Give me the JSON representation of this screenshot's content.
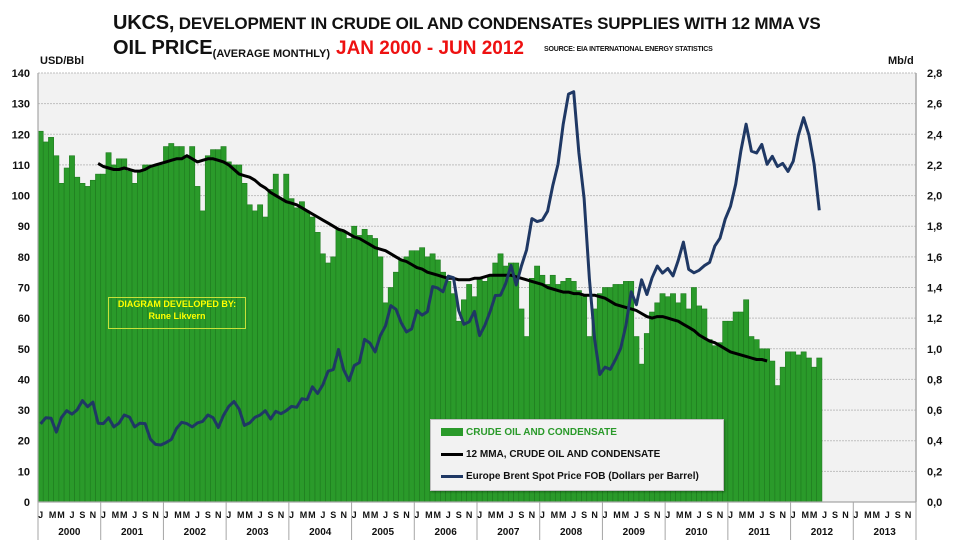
{
  "title": {
    "line1_prefix": "UKCS,",
    "line1_rest": " DEVELOPMENT IN CRUDE OIL AND CONDENSATEs SUPPLIES WITH 12 MMA VS",
    "line2_main": "OIL PRICE",
    "line2_sub": "(AVERAGE MONTHLY)",
    "line2_period": "JAN 2000 - JUN 2012",
    "source": "SOURCE: EIA INTERNATIONAL ENERGY STATISTICS"
  },
  "credit": {
    "line1": "DIAGRAM DEVELOPED BY:",
    "line2": "Rune Likvern"
  },
  "colors": {
    "bar": "#2a9a2a",
    "bar_edge": "#1f7a1f",
    "mma": "#000000",
    "price": "#1f3864",
    "period_red": "#ee1111",
    "credit_text": "#ffff00",
    "plot_bg": "#f2f2f2",
    "grid": "#bfbfbf"
  },
  "chart_data": {
    "type": "bar",
    "title": "UKCS, DEVELOPMENT IN CRUDE OIL AND CONDENSATEs SUPPLIES WITH 12 MMA VS OIL PRICE (AVERAGE MONTHLY) JAN 2000 - JUN 2012",
    "ylabel_left": "USD/Bbl",
    "ylabel_right": "Mb/d",
    "ylim_left": [
      0,
      140
    ],
    "ylim_right": [
      0,
      2.8
    ],
    "yticks_left": [
      "0",
      "10",
      "20",
      "30",
      "40",
      "50",
      "60",
      "70",
      "80",
      "90",
      "100",
      "110",
      "120",
      "130",
      "140"
    ],
    "yticks_right": [
      "0,0",
      "0,2",
      "0,4",
      "0,6",
      "0,8",
      "1,0",
      "1,2",
      "1,4",
      "1,6",
      "1,8",
      "2,0",
      "2,2",
      "2,4",
      "2,6",
      "2,8"
    ],
    "x_years": [
      "2000",
      "2001",
      "2002",
      "2003",
      "2004",
      "2005",
      "2006",
      "2007",
      "2008",
      "2009",
      "2010",
      "2011",
      "2012",
      "2013"
    ],
    "x_month_ticks": [
      "J",
      "M",
      "M",
      "J",
      "S",
      "N"
    ],
    "x_start": "2000-01",
    "x_span_months": 168,
    "grid": true,
    "legend_position": "bottom-center",
    "legend": [
      {
        "label": "CRUDE OIL AND CONDENSATE",
        "kind": "bar"
      },
      {
        "label": "12 MMA, CRUDE OIL AND CONDENSATE",
        "kind": "line"
      },
      {
        "label": "Europe Brent Spot Price FOB (Dollars per Barrel)",
        "kind": "line"
      }
    ],
    "series": [
      {
        "name": "CRUDE OIL AND CONDENSATE",
        "axis": "right",
        "unit": "Mb/d",
        "start": "2000-01",
        "values": [
          2.42,
          2.35,
          2.38,
          2.26,
          2.08,
          2.18,
          2.26,
          2.12,
          2.08,
          2.06,
          2.1,
          2.14,
          2.14,
          2.28,
          2.2,
          2.24,
          2.24,
          2.16,
          2.08,
          2.16,
          2.2,
          2.2,
          2.2,
          2.2,
          2.32,
          2.34,
          2.32,
          2.32,
          2.26,
          2.32,
          2.06,
          1.9,
          2.26,
          2.3,
          2.3,
          2.32,
          2.22,
          2.2,
          2.2,
          2.08,
          1.94,
          1.9,
          1.94,
          1.86,
          2.04,
          2.14,
          1.98,
          2.14,
          1.98,
          1.92,
          1.96,
          1.9,
          1.86,
          1.76,
          1.62,
          1.56,
          1.6,
          1.78,
          1.76,
          1.72,
          1.8,
          1.74,
          1.78,
          1.74,
          1.72,
          1.6,
          1.3,
          1.4,
          1.5,
          1.58,
          1.6,
          1.64,
          1.64,
          1.66,
          1.6,
          1.62,
          1.58,
          1.5,
          1.44,
          1.36,
          1.18,
          1.32,
          1.42,
          1.34,
          1.46,
          1.44,
          1.48,
          1.56,
          1.62,
          1.54,
          1.56,
          1.56,
          1.26,
          1.08,
          1.46,
          1.54,
          1.48,
          1.42,
          1.48,
          1.42,
          1.44,
          1.46,
          1.44,
          1.38,
          1.34,
          1.08,
          1.26,
          1.36,
          1.4,
          1.4,
          1.42,
          1.42,
          1.44,
          1.44,
          1.08,
          0.9,
          1.1,
          1.24,
          1.3,
          1.36,
          1.34,
          1.36,
          1.3,
          1.36,
          1.26,
          1.4,
          1.28,
          1.26,
          1.06,
          1.02,
          1.04,
          1.18,
          1.18,
          1.24,
          1.24,
          1.32,
          1.08,
          1.06,
          1.0,
          1.0,
          0.92,
          0.76,
          0.88,
          0.98,
          0.98,
          0.96,
          0.98,
          0.94,
          0.88,
          0.94
        ]
      },
      {
        "name": "12 MMA, CRUDE OIL AND CONDENSATE",
        "axis": "right",
        "unit": "Mb/d",
        "start": "2000-12",
        "values": [
          2.21,
          2.19,
          2.18,
          2.17,
          2.17,
          2.18,
          2.17,
          2.16,
          2.16,
          2.17,
          2.19,
          2.2,
          2.21,
          2.22,
          2.23,
          2.24,
          2.24,
          2.26,
          2.24,
          2.22,
          2.23,
          2.24,
          2.24,
          2.23,
          2.22,
          2.2,
          2.17,
          2.14,
          2.13,
          2.12,
          2.1,
          2.07,
          2.05,
          2.02,
          2.0,
          1.98,
          1.96,
          1.95,
          1.94,
          1.92,
          1.9,
          1.88,
          1.86,
          1.84,
          1.82,
          1.8,
          1.78,
          1.77,
          1.75,
          1.73,
          1.72,
          1.7,
          1.68,
          1.66,
          1.65,
          1.64,
          1.62,
          1.6,
          1.58,
          1.57,
          1.55,
          1.53,
          1.52,
          1.5,
          1.49,
          1.48,
          1.47,
          1.46,
          1.46,
          1.45,
          1.45,
          1.45,
          1.46,
          1.46,
          1.47,
          1.48,
          1.48,
          1.48,
          1.48,
          1.48,
          1.47,
          1.46,
          1.45,
          1.44,
          1.43,
          1.42,
          1.4,
          1.39,
          1.38,
          1.37,
          1.37,
          1.36,
          1.36,
          1.35,
          1.35,
          1.35,
          1.34,
          1.33,
          1.31,
          1.29,
          1.28,
          1.27,
          1.26,
          1.25,
          1.23,
          1.21,
          1.2,
          1.21,
          1.21,
          1.2,
          1.19,
          1.18,
          1.16,
          1.14,
          1.12,
          1.09,
          1.07,
          1.05,
          1.04,
          1.02,
          1.0,
          0.98,
          0.97,
          0.96,
          0.95,
          0.94,
          0.93,
          0.93,
          0.92
        ]
      },
      {
        "name": "Europe Brent Spot Price FOB (Dollars per Barrel)",
        "axis": "left",
        "unit": "USD/Bbl",
        "start": "2000-01",
        "values": [
          25.5,
          27.5,
          27.3,
          22.8,
          27.6,
          29.8,
          28.7,
          30.1,
          33.1,
          31.1,
          32.6,
          25.7,
          25.6,
          27.5,
          24.5,
          25.7,
          28.4,
          27.7,
          24.5,
          25.7,
          25.6,
          20.5,
          18.8,
          18.6,
          19.4,
          20.4,
          24.0,
          26.0,
          25.6,
          24.5,
          25.8,
          26.3,
          28.4,
          27.5,
          24.3,
          28.3,
          31.2,
          32.8,
          30.3,
          25.0,
          25.8,
          27.6,
          28.4,
          29.8,
          27.1,
          29.6,
          28.8,
          29.8,
          31.2,
          30.9,
          33.7,
          33.4,
          37.6,
          35.4,
          38.2,
          42.7,
          43.2,
          49.8,
          43.1,
          39.6,
          44.5,
          45.5,
          53.1,
          51.9,
          49.0,
          54.3,
          57.5,
          64.1,
          62.9,
          58.5,
          55.5,
          56.5,
          62.5,
          61.0,
          62.1,
          70.3,
          69.8,
          68.6,
          73.7,
          73.2,
          62.5,
          58.0,
          58.8,
          62.2,
          54.3,
          57.6,
          62.1,
          67.4,
          67.5,
          71.3,
          77.2,
          70.8,
          77.0,
          82.3,
          92.5,
          91.5,
          92.0,
          94.9,
          103.3,
          110.2,
          123.3,
          133.1,
          133.9,
          113.9,
          99.1,
          72.8,
          53.2,
          41.6,
          44.0,
          43.3,
          46.5,
          50.2,
          57.6,
          68.6,
          64.4,
          72.5,
          67.7,
          73.2,
          77.0,
          74.7,
          76.2,
          73.8,
          78.8,
          84.8,
          75.9,
          74.8,
          75.6,
          77.1,
          78.2,
          83.5,
          86.1,
          92.3,
          96.5,
          103.7,
          114.6,
          123.3,
          114.5,
          113.9,
          116.7,
          110.2,
          112.8,
          109.5,
          110.5,
          107.9,
          111.2,
          119.7,
          125.4,
          119.8,
          110.3,
          95.2
        ]
      }
    ]
  }
}
